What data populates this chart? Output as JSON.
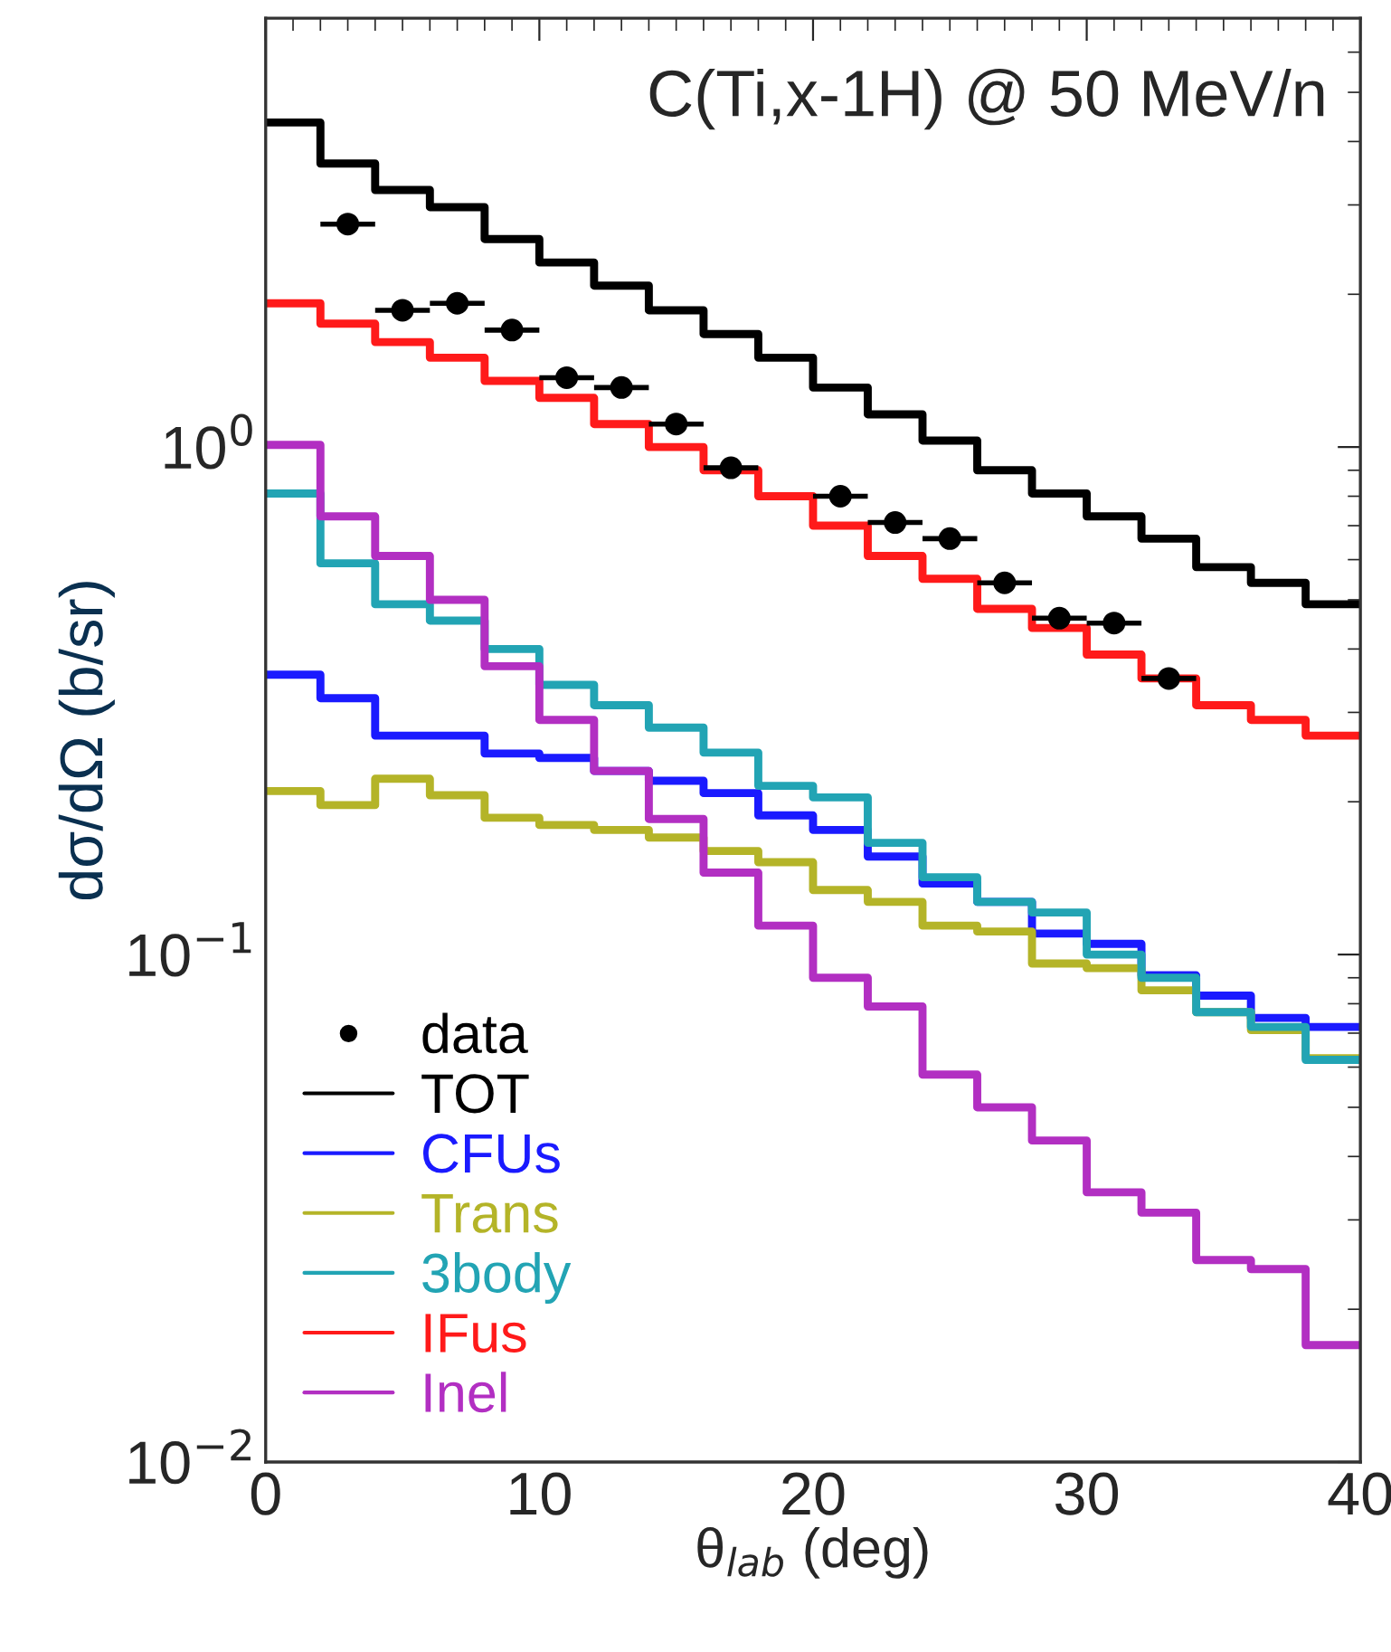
{
  "chart_data": {
    "type": "histogram",
    "title": "C(Ti,x-1H) @ 50 MeV/n",
    "xlabel": "θ$_{lab}$ (deg)",
    "ylabel": "dσ/dΩ (b/sr)",
    "bins": [
      0,
      2,
      4,
      6,
      8,
      10,
      12,
      14,
      16,
      18,
      20,
      22,
      24,
      26,
      28,
      30,
      32,
      34,
      36,
      38,
      40
    ],
    "series": [
      {
        "name": "data",
        "type": "scatter",
        "color": "#000000",
        "x": [
          3,
          5,
          7,
          9,
          11,
          13,
          15,
          17,
          21,
          23,
          25,
          27,
          29,
          31,
          33
        ],
        "values": [
          2.75,
          1.86,
          1.92,
          1.7,
          1.37,
          1.31,
          1.11,
          0.91,
          0.8,
          0.71,
          0.66,
          0.54,
          0.46,
          0.45,
          0.35
        ],
        "xerrors": [
          1,
          1,
          1,
          1,
          1,
          1,
          1,
          1,
          1,
          1,
          1,
          1,
          1,
          1,
          1
        ]
      },
      {
        "name": "TOT",
        "color": "#000000",
        "values": [
          4.36,
          3.62,
          3.21,
          2.97,
          2.57,
          2.31,
          2.08,
          1.86,
          1.67,
          1.5,
          1.31,
          1.16,
          1.03,
          0.9,
          0.81,
          0.73,
          0.66,
          0.58,
          0.54,
          0.49
        ]
      },
      {
        "name": "CFUs",
        "color": "#1a1aff",
        "values": [
          0.356,
          0.32,
          0.27,
          0.27,
          0.249,
          0.244,
          0.23,
          0.22,
          0.208,
          0.188,
          0.176,
          0.156,
          0.138,
          0.127,
          0.11,
          0.105,
          0.091,
          0.083,
          0.075,
          0.072
        ]
      },
      {
        "name": "Trans",
        "color": "#b4b428",
        "values": [
          0.21,
          0.197,
          0.222,
          0.206,
          0.186,
          0.18,
          0.176,
          0.17,
          0.16,
          0.152,
          0.134,
          0.127,
          0.114,
          0.111,
          0.096,
          0.094,
          0.085,
          0.077,
          0.071,
          0.0625
        ]
      },
      {
        "name": "3body",
        "color": "#22a4b4",
        "values": [
          0.81,
          0.59,
          0.49,
          0.455,
          0.4,
          0.34,
          0.31,
          0.28,
          0.25,
          0.215,
          0.204,
          0.166,
          0.142,
          0.127,
          0.121,
          0.1,
          0.09,
          0.077,
          0.072,
          0.062
        ]
      },
      {
        "name": "IFus",
        "color": "#ff1a1a",
        "values": [
          1.92,
          1.75,
          1.61,
          1.5,
          1.35,
          1.25,
          1.11,
          1.0,
          0.9,
          0.8,
          0.7,
          0.61,
          0.55,
          0.48,
          0.44,
          0.39,
          0.35,
          0.31,
          0.29,
          0.27
        ]
      },
      {
        "name": "Inel",
        "color": "#b22fc2",
        "values": [
          1.01,
          0.73,
          0.61,
          0.5,
          0.37,
          0.29,
          0.23,
          0.185,
          0.145,
          0.114,
          0.09,
          0.079,
          0.058,
          0.05,
          0.043,
          0.034,
          0.031,
          0.025,
          0.024,
          0.017
        ]
      }
    ],
    "log": "y",
    "xlim": [
      0,
      40
    ],
    "xticks": [
      0,
      10,
      20,
      30,
      40
    ],
    "ylim": [
      0.01,
      7
    ],
    "yticks": [
      {
        "value": 0.01,
        "label": "10$^{−2}$"
      },
      {
        "value": 0.1,
        "label": "10$^{−1}$"
      },
      {
        "value": 1,
        "label": "10$^{0}$"
      }
    ],
    "grid": false,
    "legend": "bottom left"
  }
}
